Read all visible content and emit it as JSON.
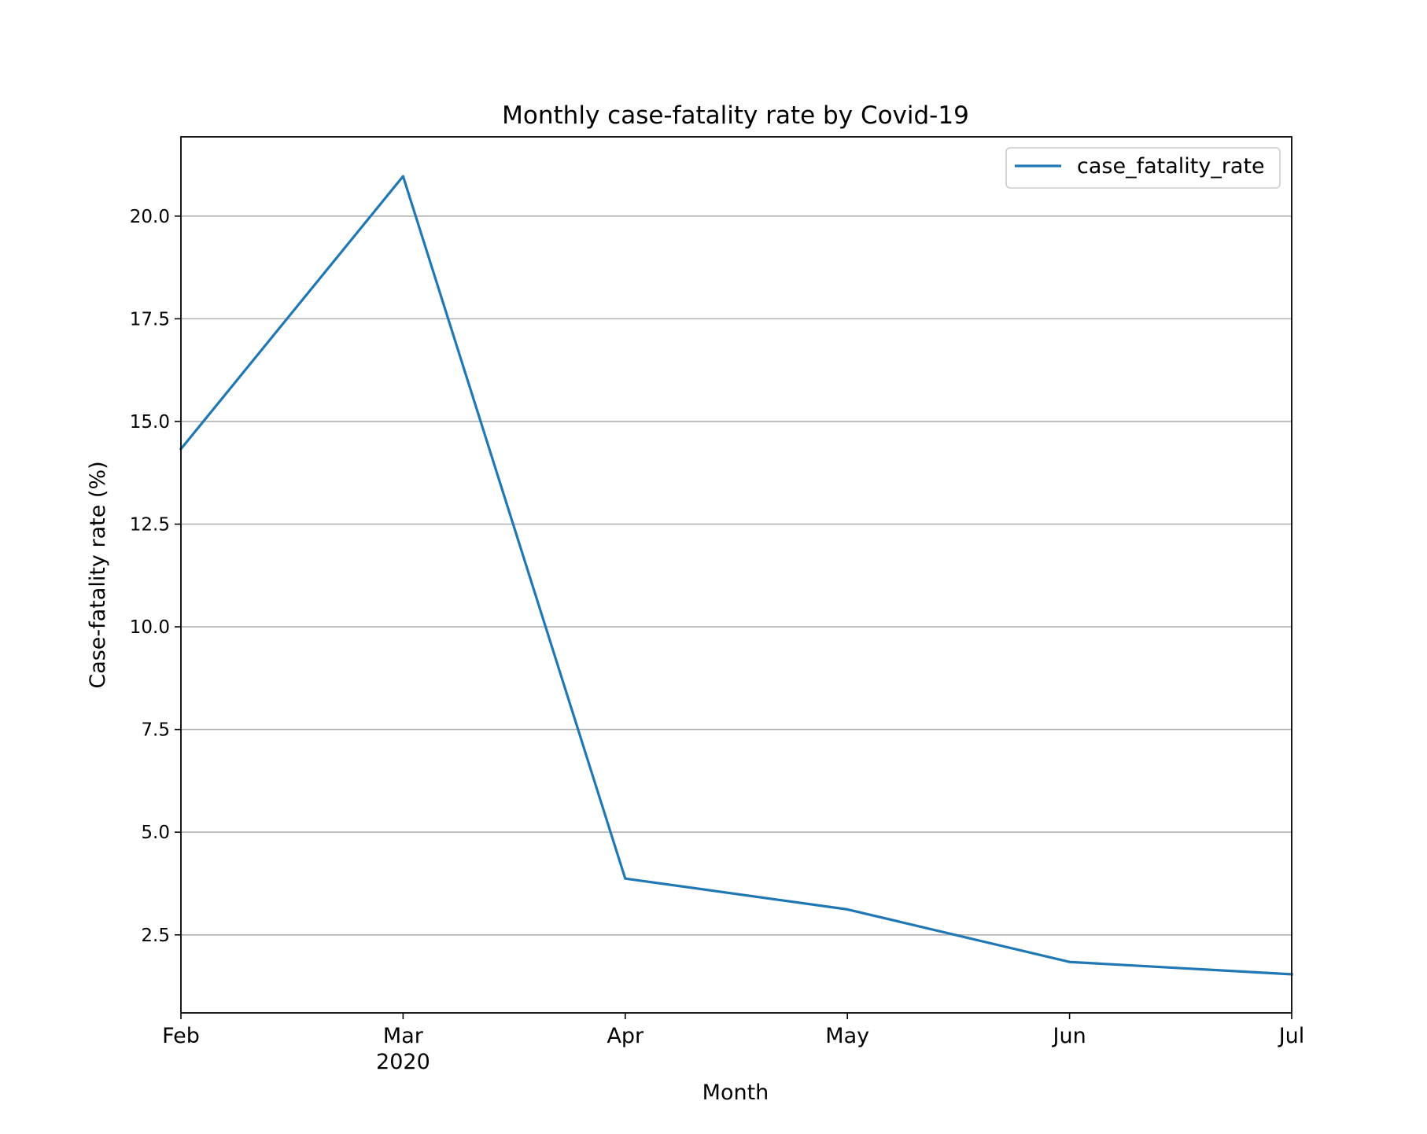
{
  "chart_data": {
    "type": "line",
    "title": "Monthly case-fatality rate by Covid-19",
    "xlabel": "Month",
    "ylabel": "Case-fatality rate (%)",
    "x": [
      "Feb",
      "Mar",
      "Apr",
      "May",
      "Jun",
      "Jul"
    ],
    "x_year_label": "2020",
    "x_year_under": "Mar",
    "series": [
      {
        "name": "case_fatality_rate",
        "color": "#1f77b4",
        "values": [
          14.33,
          20.97,
          3.87,
          3.12,
          1.84,
          1.54
        ]
      }
    ],
    "yticks": [
      2.5,
      5.0,
      7.5,
      10.0,
      12.5,
      15.0,
      17.5,
      20.0
    ],
    "ytick_labels": [
      "2.5",
      "5.0",
      "7.5",
      "10.0",
      "12.5",
      "15.0",
      "17.5",
      "20.0"
    ],
    "ylim": [
      0.6,
      21.93
    ],
    "grid": "y",
    "grid_color": "#b0b0b0",
    "legend_position": "top-right"
  }
}
